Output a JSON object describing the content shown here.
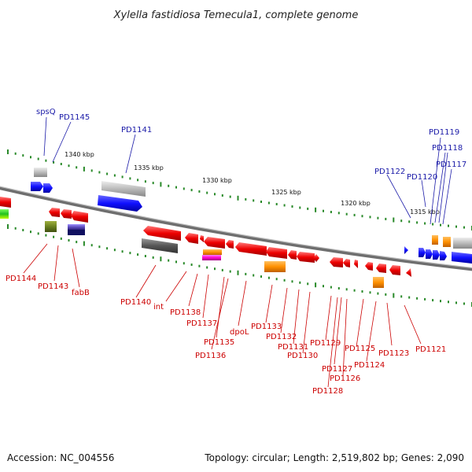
{
  "title": "Xylella fastidiosa Temecula1, complete genome",
  "footer": {
    "accession": "Accession: NC_004556",
    "summary": "Topology: circular; Length: 2,519,802 bp; Genes: 2,090"
  },
  "colors": {
    "forward": "#1a1aff",
    "reverse": "#ee0000",
    "label_forward": "#1a1aa8",
    "label_reverse": "#cc0000",
    "backbone": "#888888",
    "tick": "#2a8a2a"
  },
  "ticks": [
    "1340 kbp",
    "1335 kbp",
    "1330 kbp",
    "1325 kbp",
    "1320 kbp",
    "1315 kbp"
  ],
  "labels_top": [
    "spsQ",
    "PD1145",
    "PD1141",
    "PD1122",
    "PD1120",
    "PD1119",
    "PD1118",
    "PD1117"
  ],
  "labels_bottom": [
    "PD1144",
    "PD1143",
    "fabB",
    "PD1140",
    "int",
    "PD1138",
    "PD1137",
    "PD1135",
    "PD1136",
    "dpoL",
    "PD1133",
    "PD1132",
    "PD1131",
    "PD1130",
    "PD1129",
    "PD1127",
    "PD1128",
    "PD1126",
    "PD1125",
    "PD1124",
    "PD1123",
    "PD1121"
  ]
}
